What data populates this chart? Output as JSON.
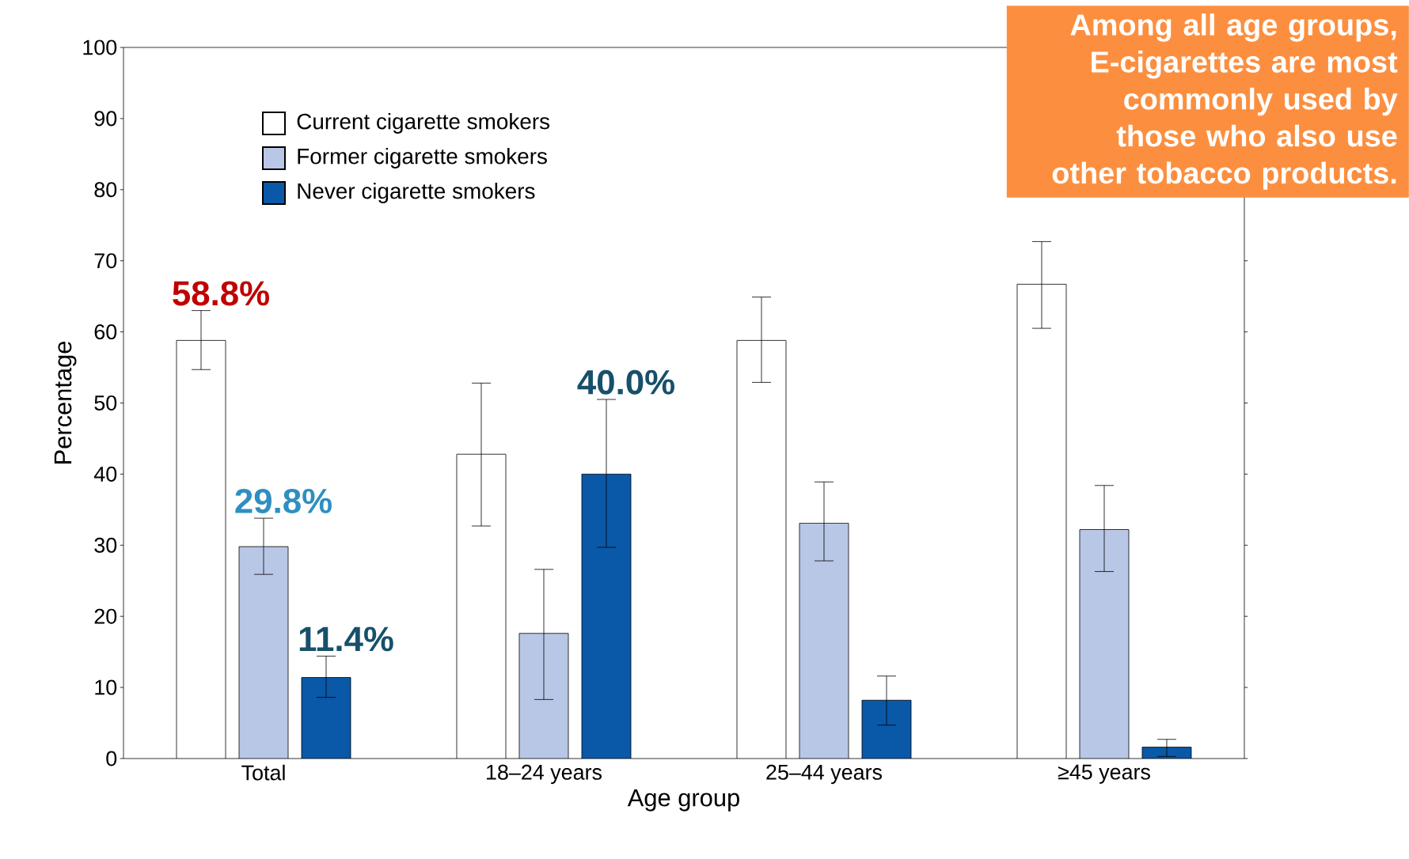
{
  "chart_data": {
    "type": "bar",
    "categories": [
      "Total",
      "18–24 years",
      "25–44 years",
      "≥45 years"
    ],
    "xlabel": "Age group",
    "ylabel": "Percentage",
    "ylim": [
      0,
      100
    ],
    "yticks": [
      0,
      10,
      20,
      30,
      40,
      50,
      60,
      70,
      80,
      90,
      100
    ],
    "grid": false,
    "legend": "top left",
    "series": [
      {
        "name": "Current cigarette smokers",
        "color": "#ffffff",
        "values": [
          58.8,
          42.8,
          58.8,
          66.7
        ],
        "errors": [
          [
            54.7,
            63.0
          ],
          [
            32.7,
            52.8
          ],
          [
            52.9,
            64.9
          ],
          [
            60.5,
            72.7
          ]
        ],
        "value_labels": [
          "58.8%",
          null,
          null,
          null
        ]
      },
      {
        "name": "Former cigarette smokers",
        "color": "#b9c7e6",
        "values": [
          29.8,
          17.6,
          33.1,
          32.2
        ],
        "errors": [
          [
            25.9,
            33.8
          ],
          [
            8.3,
            26.6
          ],
          [
            27.8,
            38.9
          ],
          [
            26.3,
            38.4
          ]
        ],
        "value_labels": [
          "29.8%",
          null,
          null,
          null
        ]
      },
      {
        "name": "Never cigarette smokers",
        "color": "#0a58a8",
        "values": [
          11.4,
          40.0,
          8.2,
          1.6
        ],
        "errors": [
          [
            8.6,
            14.4
          ],
          [
            29.7,
            50.5
          ],
          [
            4.7,
            11.6
          ],
          [
            0.3,
            2.7
          ]
        ],
        "value_labels": [
          "11.4%",
          "40.0%",
          null,
          null
        ]
      }
    ],
    "annotations": [
      "Among all age groups, E-cigarettes are most commonly used by those who also use other tobacco products."
    ]
  }
}
